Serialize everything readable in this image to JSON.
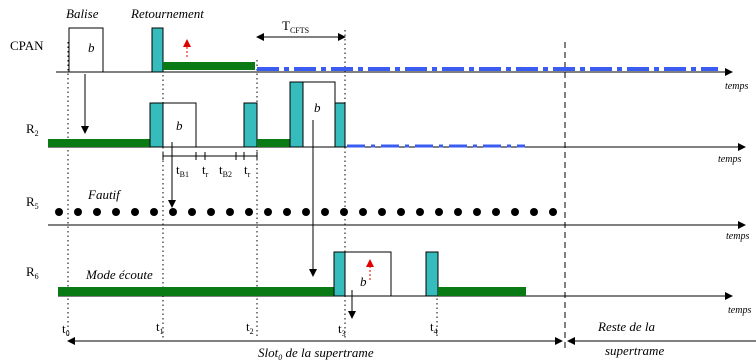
{
  "rows": {
    "cpan": "CPAN",
    "r2": {
      "base": "R",
      "sub": "2"
    },
    "r5": {
      "base": "R",
      "sub": "5"
    },
    "r6": {
      "base": "R",
      "sub": "6"
    }
  },
  "annotations": {
    "balise": "Balise",
    "retournement": "Retournement",
    "fautif": "Fautif",
    "mode_ecoute": "Mode écoute",
    "beacon_letter": "b"
  },
  "tcfts": {
    "base": "T",
    "sub": "CFTS"
  },
  "time_axis_label": "temps",
  "intervals": [
    {
      "base": "t",
      "sub": "B1"
    },
    {
      "base": "t",
      "sub": "r"
    },
    {
      "base": "t",
      "sub": "B2"
    },
    {
      "base": "t",
      "sub": "r"
    }
  ],
  "times": [
    {
      "base": "t",
      "sub": "0"
    },
    {
      "base": "t",
      "sub": "1"
    },
    {
      "base": "t",
      "sub": "2"
    },
    {
      "base": "t",
      "sub": "3"
    },
    {
      "base": "t",
      "sub": "4"
    }
  ],
  "slot": {
    "base": "Slot",
    "sub": "0",
    "rest": " de la supertrame"
  },
  "rest": {
    "line1": "Reste de la",
    "line2": "supertrame"
  },
  "colors": {
    "green": "#0a7a14",
    "cyan": "#36bcbc",
    "blue": "#3a5cf0",
    "red": "#e00000",
    "black": "#000000"
  }
}
